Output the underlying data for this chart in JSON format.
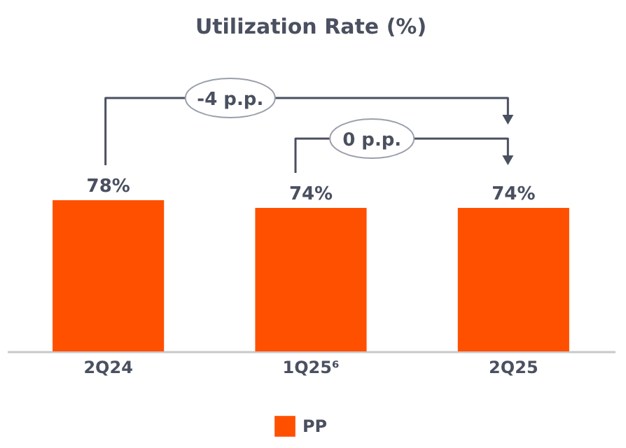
{
  "chart_data": {
    "type": "bar",
    "title": "Utilization Rate (%)",
    "categories": [
      "2Q24",
      "1Q25⁶",
      "2Q25"
    ],
    "series": [
      {
        "name": "PP",
        "color": "#ff5000",
        "values": [
          78,
          74,
          74
        ],
        "value_labels": [
          "78%",
          "74%",
          "74%"
        ]
      }
    ],
    "legend": "bottom",
    "annotations": [
      "-4 p.p.",
      "0 p.p."
    ]
  }
}
